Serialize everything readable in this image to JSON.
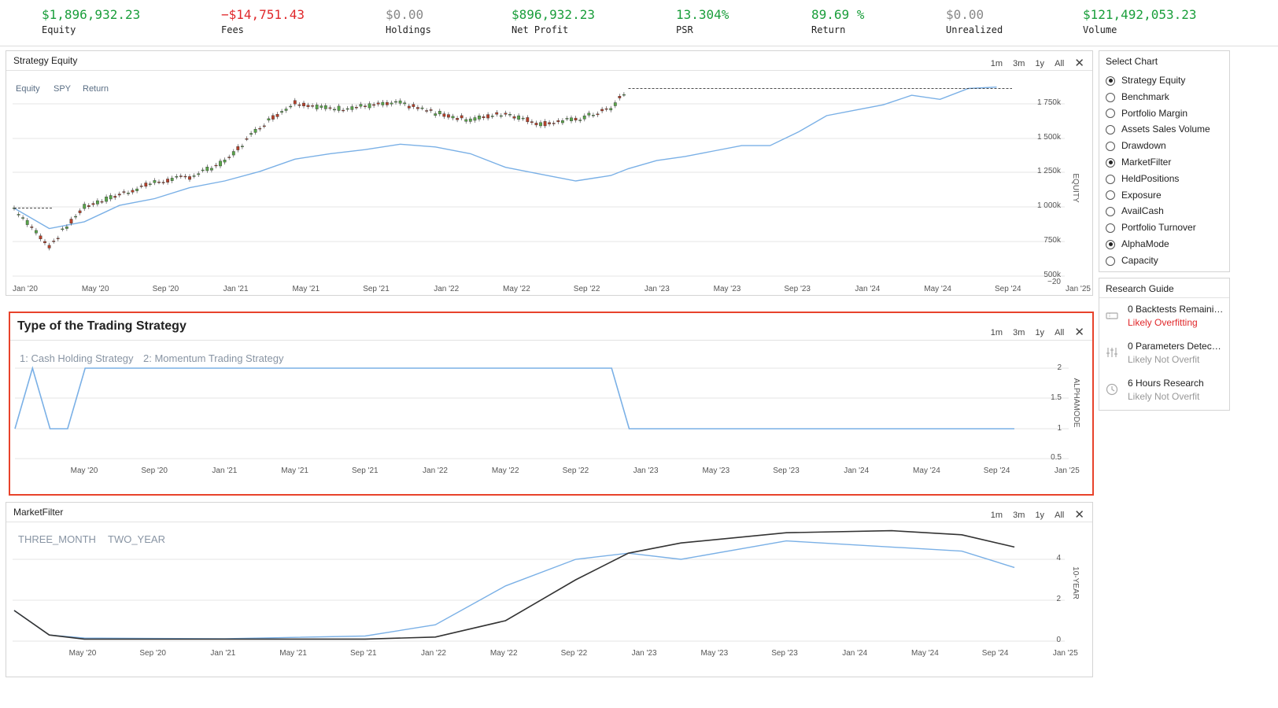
{
  "stats": [
    {
      "value": "$1,896,932.23",
      "label": "Equity",
      "color": "green"
    },
    {
      "value": "−$14,751.43",
      "label": "Fees",
      "color": "red"
    },
    {
      "value": "$0.00",
      "label": "Holdings",
      "color": "gray"
    },
    {
      "value": "$896,932.23",
      "label": "Net Profit",
      "color": "green"
    },
    {
      "value": "13.304%",
      "label": "PSR",
      "color": "green"
    },
    {
      "value": "89.69 %",
      "label": "Return",
      "color": "green"
    },
    {
      "value": "$0.00",
      "label": "Unrealized",
      "color": "gray"
    },
    {
      "value": "$121,492,053.23",
      "label": "Volume",
      "color": "green"
    }
  ],
  "range_buttons": [
    "1m",
    "3m",
    "1y",
    "All"
  ],
  "charts": {
    "equity": {
      "title": "Strategy Equity",
      "legend": [
        "Equity",
        "SPY",
        "Return"
      ],
      "y_axis_label": "EQUITY",
      "y_ticks": [
        "1 750k",
        "1 500k",
        "1 250k",
        "1 000k",
        "750k",
        "500k"
      ],
      "y_extra_tick": "−20",
      "x_ticks": [
        "Jan '20",
        "May '20",
        "Sep '20",
        "Jan '21",
        "May '21",
        "Sep '21",
        "Jan '22",
        "May '22",
        "Sep '22",
        "Jan '23",
        "May '23",
        "Sep '23",
        "Jan '24",
        "May '24",
        "Sep '24",
        "Jan '25"
      ]
    },
    "alpha": {
      "title": "Type of the Trading Strategy",
      "legend": [
        "1: Cash Holding Strategy",
        "2: Momentum Trading Strategy"
      ],
      "y_axis_label": "ALPHAMODE",
      "y_ticks": [
        "2",
        "1.5",
        "1",
        "0.5"
      ],
      "x_ticks": [
        "May '20",
        "Sep '20",
        "Jan '21",
        "May '21",
        "Sep '21",
        "Jan '22",
        "May '22",
        "Sep '22",
        "Jan '23",
        "May '23",
        "Sep '23",
        "Jan '24",
        "May '24",
        "Sep '24",
        "Jan '25"
      ]
    },
    "market": {
      "title": "MarketFilter",
      "legend": [
        "THREE_MONTH",
        "TWO_YEAR"
      ],
      "y_axis_label": "10-YEAR",
      "y_ticks": [
        "4",
        "2",
        "0"
      ],
      "x_ticks": [
        "May '20",
        "Sep '20",
        "Jan '21",
        "May '21",
        "Sep '21",
        "Jan '22",
        "May '22",
        "Sep '22",
        "Jan '23",
        "May '23",
        "Sep '23",
        "Jan '24",
        "May '24",
        "Sep '24",
        "Jan '25"
      ]
    }
  },
  "chart_data": [
    {
      "type": "line",
      "title": "Strategy Equity",
      "ylabel": "EQUITY",
      "ylim": [
        500000,
        1900000
      ],
      "x": [
        "2020-01",
        "2020-03",
        "2020-05",
        "2020-07",
        "2020-09",
        "2020-11",
        "2021-01",
        "2021-03",
        "2021-05",
        "2021-07",
        "2021-09",
        "2021-11",
        "2022-01",
        "2022-03",
        "2022-05",
        "2022-07",
        "2022-09",
        "2022-11",
        "2022-12"
      ],
      "series": [
        {
          "name": "Equity",
          "values": [
            1000000,
            720000,
            1010000,
            1100000,
            1190000,
            1230000,
            1340000,
            1600000,
            1780000,
            1730000,
            1750000,
            1770000,
            1700000,
            1650000,
            1700000,
            1620000,
            1650000,
            1730000,
            1880000
          ]
        },
        {
          "name": "SPY",
          "values": [
            1000000,
            850000,
            900000,
            1020000,
            1070000,
            1150000,
            1200000,
            1270000,
            1360000,
            1400000,
            1430000,
            1470000,
            1450000,
            1400000,
            1300000,
            1250000,
            1200000,
            1240000,
            1290000
          ]
        }
      ]
    },
    {
      "type": "line",
      "title": "Type of the Trading Strategy",
      "ylabel": "ALPHAMODE",
      "ylim": [
        0.5,
        2
      ],
      "x": [
        "2020-01",
        "2020-02",
        "2020-03",
        "2020-04",
        "2020-05",
        "2020-08",
        "2020-09",
        "2022-11",
        "2022-12",
        "2023-01",
        "2024-12"
      ],
      "series": [
        {
          "name": "AlphaMode",
          "values": [
            1,
            2,
            1,
            1,
            2,
            2,
            2,
            2,
            1,
            1,
            1
          ]
        }
      ]
    },
    {
      "type": "line",
      "title": "MarketFilter",
      "ylabel": "10-YEAR",
      "ylim": [
        0,
        5.5
      ],
      "x": [
        "2020-01",
        "2020-03",
        "2020-05",
        "2020-09",
        "2021-01",
        "2021-09",
        "2022-01",
        "2022-05",
        "2022-09",
        "2022-12",
        "2023-03",
        "2023-09",
        "2024-03",
        "2024-07",
        "2024-10"
      ],
      "series": [
        {
          "name": "THREE_MONTH",
          "values": [
            1.5,
            0.3,
            0.1,
            0.1,
            0.1,
            0.1,
            0.2,
            1.0,
            3.0,
            4.3,
            4.8,
            5.3,
            5.4,
            5.2,
            4.6
          ]
        },
        {
          "name": "TWO_YEAR",
          "values": [
            1.5,
            0.3,
            0.15,
            0.13,
            0.12,
            0.25,
            0.8,
            2.7,
            4.0,
            4.3,
            4.0,
            4.9,
            4.6,
            4.4,
            3.6
          ]
        }
      ]
    }
  ],
  "select_chart": {
    "title": "Select Chart",
    "items": [
      {
        "label": "Strategy Equity",
        "checked": true
      },
      {
        "label": "Benchmark",
        "checked": false
      },
      {
        "label": "Portfolio Margin",
        "checked": false
      },
      {
        "label": "Assets Sales Volume",
        "checked": false
      },
      {
        "label": "Drawdown",
        "checked": false
      },
      {
        "label": "MarketFilter",
        "checked": true
      },
      {
        "label": "HeldPositions",
        "checked": false
      },
      {
        "label": "Exposure",
        "checked": false
      },
      {
        "label": "AvailCash",
        "checked": false
      },
      {
        "label": "Portfolio Turnover",
        "checked": false
      },
      {
        "label": "AlphaMode",
        "checked": true
      },
      {
        "label": "Capacity",
        "checked": false
      }
    ]
  },
  "research_guide": {
    "title": "Research Guide",
    "items": [
      {
        "icon": "ticket-icon",
        "line1": "0 Backtests Remaini…",
        "line2": "Likely Overfitting",
        "warn": true
      },
      {
        "icon": "sliders-icon",
        "line1": "0 Parameters Detec…",
        "line2": "Likely Not Overfit",
        "warn": false
      },
      {
        "icon": "clock-icon",
        "line1": "6 Hours Research",
        "line2": "Likely Not Overfit",
        "warn": false
      }
    ]
  }
}
